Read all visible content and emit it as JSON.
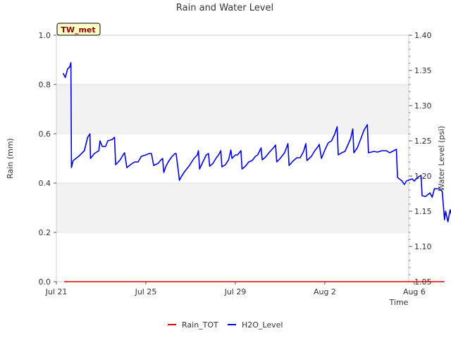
{
  "chart_data": {
    "type": "line",
    "title": "Rain and Water Level",
    "site_badge": "TW_met",
    "xlabel": "Time",
    "ylabel_left": "Rain (mm)",
    "ylabel_right": "Water Level (psi)",
    "x_range_days": [
      0,
      31.5
    ],
    "x_ticks": [
      {
        "day": 0,
        "label": "Jul 21"
      },
      {
        "day": 8,
        "label": "Jul 25"
      },
      {
        "day": 16,
        "label": "Jul 29"
      },
      {
        "day": 24,
        "label": "Aug 2"
      },
      {
        "day": 32,
        "label": "Aug 6"
      }
    ],
    "ylim_left": [
      0.0,
      1.0
    ],
    "yticks_left": [
      "0.0",
      "0.2",
      "0.4",
      "0.6",
      "0.8",
      "1.0"
    ],
    "ylim_right": [
      1.05,
      1.4
    ],
    "yticks_right": [
      "1.05",
      "1.10",
      "1.15",
      "1.20",
      "1.25",
      "1.30",
      "1.35",
      "1.40"
    ],
    "grid": "horizontal bands",
    "legend_position": "bottom-center",
    "series": [
      {
        "name": "Rain_TOT",
        "axis": "left",
        "color": "#dd0000",
        "points": [
          [
            0.7,
            0.0
          ],
          [
            34.7,
            0.0
          ]
        ]
      },
      {
        "name": "H2O_Level",
        "axis": "right",
        "color": "#0000dd",
        "points": [
          [
            0.6,
            1.346
          ],
          [
            0.8,
            1.34
          ],
          [
            1.0,
            1.352
          ],
          [
            1.2,
            1.355
          ],
          [
            1.3,
            1.361
          ],
          [
            1.35,
            1.212
          ],
          [
            1.5,
            1.222
          ],
          [
            2.0,
            1.228
          ],
          [
            2.5,
            1.236
          ],
          [
            2.8,
            1.255
          ],
          [
            3.0,
            1.26
          ],
          [
            3.05,
            1.225
          ],
          [
            3.4,
            1.232
          ],
          [
            3.8,
            1.236
          ],
          [
            3.9,
            1.25
          ],
          [
            4.1,
            1.242
          ],
          [
            4.4,
            1.242
          ],
          [
            4.6,
            1.25
          ],
          [
            5.0,
            1.252
          ],
          [
            5.2,
            1.255
          ],
          [
            5.3,
            1.216
          ],
          [
            5.7,
            1.223
          ],
          [
            6.0,
            1.231
          ],
          [
            6.1,
            1.233
          ],
          [
            6.3,
            1.212
          ],
          [
            6.7,
            1.217
          ],
          [
            7.0,
            1.22
          ],
          [
            7.3,
            1.22
          ],
          [
            7.6,
            1.228
          ],
          [
            8.0,
            1.23
          ],
          [
            8.3,
            1.232
          ],
          [
            8.5,
            1.232
          ],
          [
            8.7,
            1.215
          ],
          [
            9.1,
            1.218
          ],
          [
            9.3,
            1.222
          ],
          [
            9.5,
            1.225
          ],
          [
            9.6,
            1.205
          ],
          [
            9.8,
            1.214
          ],
          [
            10.0,
            1.22
          ],
          [
            10.3,
            1.227
          ],
          [
            10.6,
            1.232
          ],
          [
            10.7,
            1.232
          ],
          [
            10.9,
            1.208
          ],
          [
            11.0,
            1.194
          ],
          [
            11.2,
            1.2
          ],
          [
            11.5,
            1.207
          ],
          [
            11.9,
            1.215
          ],
          [
            12.3,
            1.225
          ],
          [
            12.6,
            1.23
          ],
          [
            12.7,
            1.236
          ],
          [
            12.8,
            1.21
          ],
          [
            13.1,
            1.22
          ],
          [
            13.4,
            1.23
          ],
          [
            13.6,
            1.232
          ],
          [
            13.7,
            1.214
          ],
          [
            14.0,
            1.218
          ],
          [
            14.3,
            1.226
          ],
          [
            14.5,
            1.23
          ],
          [
            14.7,
            1.236
          ],
          [
            14.8,
            1.213
          ],
          [
            15.1,
            1.216
          ],
          [
            15.4,
            1.223
          ],
          [
            15.6,
            1.237
          ],
          [
            15.7,
            1.225
          ],
          [
            16.0,
            1.23
          ],
          [
            16.2,
            1.23
          ],
          [
            16.5,
            1.236
          ],
          [
            16.6,
            1.21
          ],
          [
            16.9,
            1.214
          ],
          [
            17.2,
            1.22
          ],
          [
            17.5,
            1.222
          ],
          [
            17.8,
            1.228
          ],
          [
            18.0,
            1.23
          ],
          [
            18.3,
            1.24
          ],
          [
            18.4,
            1.223
          ],
          [
            18.7,
            1.227
          ],
          [
            19.0,
            1.233
          ],
          [
            19.4,
            1.24
          ],
          [
            19.6,
            1.244
          ],
          [
            19.7,
            1.22
          ],
          [
            20.0,
            1.225
          ],
          [
            20.4,
            1.233
          ],
          [
            20.7,
            1.246
          ],
          [
            20.8,
            1.215
          ],
          [
            21.2,
            1.222
          ],
          [
            21.5,
            1.226
          ],
          [
            21.8,
            1.226
          ],
          [
            22.1,
            1.235
          ],
          [
            22.3,
            1.246
          ],
          [
            22.4,
            1.222
          ],
          [
            22.8,
            1.228
          ],
          [
            23.1,
            1.236
          ],
          [
            23.4,
            1.242
          ],
          [
            23.5,
            1.245
          ],
          [
            23.7,
            1.225
          ],
          [
            24.0,
            1.237
          ],
          [
            24.3,
            1.247
          ],
          [
            24.6,
            1.25
          ],
          [
            24.9,
            1.26
          ],
          [
            25.1,
            1.27
          ],
          [
            25.2,
            1.23
          ],
          [
            25.5,
            1.233
          ],
          [
            25.8,
            1.235
          ],
          [
            26.0,
            1.242
          ],
          [
            26.3,
            1.253
          ],
          [
            26.5,
            1.267
          ],
          [
            26.6,
            1.233
          ],
          [
            26.9,
            1.24
          ],
          [
            27.2,
            1.252
          ],
          [
            27.5,
            1.265
          ],
          [
            27.8,
            1.273
          ],
          [
            27.9,
            1.233
          ],
          [
            28.4,
            1.235
          ],
          [
            28.7,
            1.234
          ],
          [
            29.1,
            1.236
          ],
          [
            29.5,
            1.236
          ],
          [
            29.8,
            1.233
          ],
          [
            30.4,
            1.238
          ],
          [
            30.5,
            1.198
          ],
          [
            30.9,
            1.193
          ],
          [
            31.1,
            1.188
          ],
          [
            31.3,
            1.193
          ],
          [
            31.8,
            1.196
          ],
          [
            32.0,
            1.193
          ],
          [
            32.3,
            1.198
          ],
          [
            32.6,
            1.201
          ],
          [
            32.7,
            1.172
          ],
          [
            33.0,
            1.171
          ],
          [
            33.4,
            1.176
          ],
          [
            33.6,
            1.17
          ],
          [
            33.8,
            1.182
          ],
          [
            34.2,
            1.182
          ],
          [
            34.5,
            1.178
          ],
          [
            34.6,
            1.158
          ],
          [
            34.7,
            1.138
          ],
          [
            34.8,
            1.15
          ],
          [
            35.0,
            1.135
          ],
          [
            35.2,
            1.152
          ],
          [
            35.5,
            1.136
          ],
          [
            35.8,
            1.138
          ],
          [
            36.0,
            1.13
          ],
          [
            36.2,
            1.142
          ],
          [
            36.4,
            1.125
          ],
          [
            36.6,
            1.128
          ],
          [
            36.9,
            1.125
          ],
          [
            37.2,
            1.13
          ],
          [
            37.4,
            1.136
          ],
          [
            37.5,
            1.11
          ],
          [
            37.7,
            1.115
          ],
          [
            37.8,
            1.107
          ],
          [
            38.0,
            1.118
          ],
          [
            38.2,
            1.102
          ],
          [
            38.4,
            1.106
          ],
          [
            38.5,
            1.115
          ],
          [
            38.6,
            1.108
          ],
          [
            38.8,
            1.112
          ]
        ]
      }
    ]
  }
}
